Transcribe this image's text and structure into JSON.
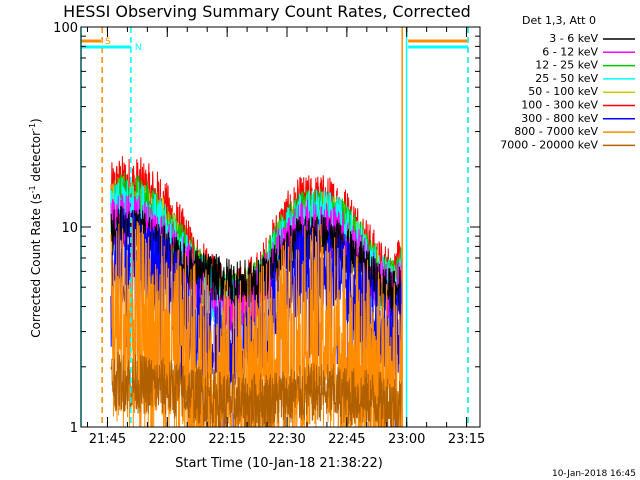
{
  "chart_data": {
    "type": "line",
    "title": "HESSI Observing Summary Count Rates, Corrected",
    "ylabel_parts": [
      "Corrected Count Rate (s",
      "-1",
      " detector",
      "-1",
      ")"
    ],
    "xlabel": "Start Time (10-Jan-18 21:38:22)",
    "date_stamp": "10-Jan-2018 16:45",
    "y_scale": "log",
    "ylim": [
      1,
      100
    ],
    "xlim_minutes": [
      0,
      100
    ],
    "x_tick_labels": [
      "21:45",
      "22:00",
      "22:15",
      "22:30",
      "22:45",
      "23:00",
      "23:15"
    ],
    "x_tick_positions_min": [
      6.63,
      21.63,
      36.63,
      51.63,
      66.63,
      81.63,
      96.63
    ],
    "y_tick_labels": [
      "1",
      "10",
      "100"
    ],
    "y_tick_values": [
      1,
      10,
      100
    ],
    "legend": {
      "header": "Det 1,3, Att 0",
      "placement": "outside-right",
      "entries": [
        {
          "label": "3 - 6 keV",
          "color": "#000000"
        },
        {
          "label": "6 - 12 keV",
          "color": "#ff00ff"
        },
        {
          "label": "12 - 25 keV",
          "color": "#00c800"
        },
        {
          "label": "25 - 50 keV",
          "color": "#00ffff"
        },
        {
          "label": "50 - 100 keV",
          "color": "#d2c800"
        },
        {
          "label": "100 - 300 keV",
          "color": "#ff0000"
        },
        {
          "label": "300 - 800 keV",
          "color": "#0000ff"
        },
        {
          "label": "800 - 7000 keV",
          "color": "#ff8c00"
        },
        {
          "label": "7000 - 20000 keV",
          "color": "#b06000"
        }
      ]
    },
    "flags": [
      {
        "label": "S",
        "color": "#ff8c00",
        "start_min": 0,
        "end_min": 5,
        "line_min": 5.3,
        "style": "dashed"
      },
      {
        "label": "S",
        "color": "#ff8c00",
        "start_min": 82,
        "end_min": 97,
        "line_min": 97,
        "style": "dashed"
      },
      {
        "label": "N",
        "color": "#00ffff",
        "start_min": 0,
        "end_min": 12.5,
        "line_min": 12.5,
        "style": "dashed"
      },
      {
        "label": "N",
        "color": "#00ffff",
        "start_min": 82,
        "end_min": 97,
        "line_min": 97,
        "style": "dashed"
      },
      {
        "label": "",
        "color": "#00ffff",
        "start_min": 0,
        "end_min": 0,
        "line_min": 0,
        "style": "solid"
      },
      {
        "label": "",
        "color": "#00ffff",
        "start_min": 81.6,
        "end_min": 81.6,
        "line_min": 81.6,
        "style": "solid"
      },
      {
        "label": "",
        "color": "#ff8c00",
        "start_min": 80.5,
        "end_min": 80.5,
        "line_min": 80.5,
        "style": "solid"
      }
    ],
    "data_window_min": [
      7.5,
      80.5
    ],
    "series": [
      {
        "name": "100 - 300 keV",
        "color": "#ff0000",
        "points": [
          [
            7.5,
            14.5
          ],
          [
            10,
            16
          ],
          [
            15,
            15.5
          ],
          [
            20,
            13
          ],
          [
            25,
            9
          ],
          [
            30,
            6
          ],
          [
            35,
            4.6
          ],
          [
            40,
            4.5
          ],
          [
            45,
            5.5
          ],
          [
            50,
            9.5
          ],
          [
            55,
            12.5
          ],
          [
            60,
            13
          ],
          [
            65,
            12
          ],
          [
            70,
            9
          ],
          [
            75,
            6
          ],
          [
            79,
            5.5
          ],
          [
            80,
            6.5
          ]
        ],
        "spread": 0.16
      },
      {
        "name": "50 - 100 keV",
        "color": "#d2c800",
        "points": [
          [
            7.5,
            12
          ],
          [
            10,
            13
          ],
          [
            15,
            12.5
          ],
          [
            20,
            10.5
          ],
          [
            25,
            7.5
          ],
          [
            30,
            5.4
          ],
          [
            35,
            4.3
          ],
          [
            40,
            4.2
          ],
          [
            45,
            5
          ],
          [
            50,
            8
          ],
          [
            55,
            10.5
          ],
          [
            60,
            11
          ],
          [
            65,
            10
          ],
          [
            70,
            7.5
          ],
          [
            75,
            5.2
          ],
          [
            79,
            4.8
          ],
          [
            80,
            5.5
          ]
        ],
        "spread": 0.15
      },
      {
        "name": "12 - 25 keV",
        "color": "#00c800",
        "points": [
          [
            7.5,
            12.5
          ],
          [
            10,
            14
          ],
          [
            15,
            13
          ],
          [
            20,
            11
          ],
          [
            25,
            7.8
          ],
          [
            30,
            5.6
          ],
          [
            35,
            4.4
          ],
          [
            40,
            4.3
          ],
          [
            45,
            5.2
          ],
          [
            50,
            8.5
          ],
          [
            55,
            11
          ],
          [
            60,
            11.5
          ],
          [
            65,
            10.5
          ],
          [
            70,
            8
          ],
          [
            75,
            5.5
          ],
          [
            79,
            5
          ],
          [
            80,
            5.8
          ]
        ],
        "spread": 0.14
      },
      {
        "name": "25 - 50 keV",
        "color": "#00ffff",
        "points": [
          [
            7.5,
            11
          ],
          [
            10,
            12.5
          ],
          [
            15,
            12
          ],
          [
            20,
            10
          ],
          [
            25,
            7.2
          ],
          [
            30,
            5.3
          ],
          [
            35,
            4.2
          ],
          [
            40,
            4.2
          ],
          [
            45,
            5
          ],
          [
            50,
            8
          ],
          [
            55,
            10.8
          ],
          [
            60,
            11.2
          ],
          [
            65,
            10
          ],
          [
            70,
            7.5
          ],
          [
            75,
            5.2
          ],
          [
            79,
            4.8
          ],
          [
            80,
            5.4
          ]
        ],
        "spread": 0.15
      },
      {
        "name": "6 - 12 keV",
        "color": "#ff00ff",
        "points": [
          [
            7.5,
            10
          ],
          [
            10,
            11
          ],
          [
            15,
            10.5
          ],
          [
            20,
            9
          ],
          [
            25,
            6.8
          ],
          [
            30,
            5
          ],
          [
            35,
            4
          ],
          [
            40,
            4
          ],
          [
            45,
            4.8
          ],
          [
            50,
            7.5
          ],
          [
            55,
            9.8
          ],
          [
            60,
            10.2
          ],
          [
            65,
            9.2
          ],
          [
            70,
            7
          ],
          [
            75,
            5
          ],
          [
            79,
            4.6
          ],
          [
            80,
            5.2
          ]
        ],
        "spread": 0.14
      },
      {
        "name": "3 - 6 keV",
        "color": "#000000",
        "points": [
          [
            7.5,
            9
          ],
          [
            10,
            10
          ],
          [
            15,
            9.5
          ],
          [
            20,
            8
          ],
          [
            25,
            6.5
          ],
          [
            30,
            5.8
          ],
          [
            35,
            5.5
          ],
          [
            40,
            5.2
          ],
          [
            45,
            5.2
          ],
          [
            50,
            7
          ],
          [
            55,
            8.8
          ],
          [
            60,
            9
          ],
          [
            65,
            8.2
          ],
          [
            70,
            6.5
          ],
          [
            75,
            5
          ],
          [
            79,
            4.6
          ],
          [
            80,
            5
          ]
        ],
        "spread": 0.12
      },
      {
        "name": "300 - 800 keV",
        "color": "#0000ff",
        "points": [
          [
            7.5,
            7.2
          ],
          [
            10,
            7.3
          ],
          [
            15,
            6.8
          ],
          [
            20,
            5.8
          ],
          [
            25,
            4.2
          ],
          [
            30,
            3.2
          ],
          [
            35,
            2.6
          ],
          [
            40,
            2.5
          ],
          [
            45,
            3
          ],
          [
            50,
            4.8
          ],
          [
            55,
            6.2
          ],
          [
            60,
            6.5
          ],
          [
            65,
            5.8
          ],
          [
            70,
            4.2
          ],
          [
            75,
            3
          ],
          [
            79,
            2.7
          ],
          [
            80,
            3.2
          ]
        ],
        "spread": 0.24
      },
      {
        "name": "800 - 7000 keV",
        "color": "#ff8c00",
        "points": [
          [
            7.5,
            3.2
          ],
          [
            10,
            3.3
          ],
          [
            15,
            3
          ],
          [
            20,
            2.7
          ],
          [
            25,
            2.2
          ],
          [
            30,
            1.8
          ],
          [
            35,
            1.6
          ],
          [
            40,
            1.6
          ],
          [
            45,
            1.8
          ],
          [
            50,
            2.4
          ],
          [
            55,
            2.9
          ],
          [
            60,
            3
          ],
          [
            65,
            2.6
          ],
          [
            70,
            2.1
          ],
          [
            75,
            1.7
          ],
          [
            79,
            1.6
          ],
          [
            80,
            1.8
          ]
        ],
        "spread": 0.55
      },
      {
        "name": "7000 - 20000 keV",
        "color": "#b06000",
        "points": [
          [
            7.5,
            1.7
          ],
          [
            20,
            1.6
          ],
          [
            40,
            1.3
          ],
          [
            60,
            1.5
          ],
          [
            80,
            1.3
          ]
        ],
        "spread": 0.15
      }
    ]
  }
}
